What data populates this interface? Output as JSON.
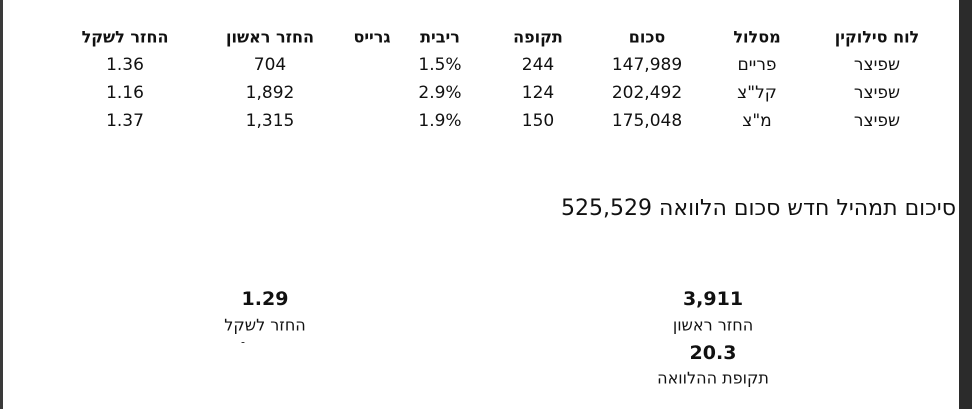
{
  "table": {
    "headers": [
      "לוח סילוקין",
      "מסלול",
      "סכום",
      "תקופה",
      "ריבית",
      "גרייס",
      "החזר ראשון",
      "החזר לשקל"
    ],
    "rows": [
      {
        "schedule": "שפיצר",
        "track": "פריים",
        "amount": "147,989",
        "period": "244",
        "rate": "1.5%",
        "first_payment": "704",
        "ratio": "1.36"
      },
      {
        "schedule": "שפיצר",
        "track": "קל\"צ",
        "amount": "202,492",
        "period": "124",
        "rate": "2.9%",
        "first_payment": "1,892",
        "ratio": "1.16"
      },
      {
        "schedule": "שפיצר",
        "track": "מ\"צ",
        "amount": "175,048",
        "period": "150",
        "rate": "1.9%",
        "first_payment": "1,315",
        "ratio": "1.37"
      }
    ]
  },
  "summary": {
    "label": "סיכום תמהיל חדש סכום הלוואה",
    "value": "525,529"
  },
  "stats": {
    "first_payment": {
      "value": "3,911",
      "label": "החזר ראשון"
    },
    "loan_period": {
      "value": "20.3",
      "label": "תקופת ההלוואה"
    },
    "ratio": {
      "value": "1.29",
      "label": "החזר לשקל",
      "note": "-"
    }
  }
}
